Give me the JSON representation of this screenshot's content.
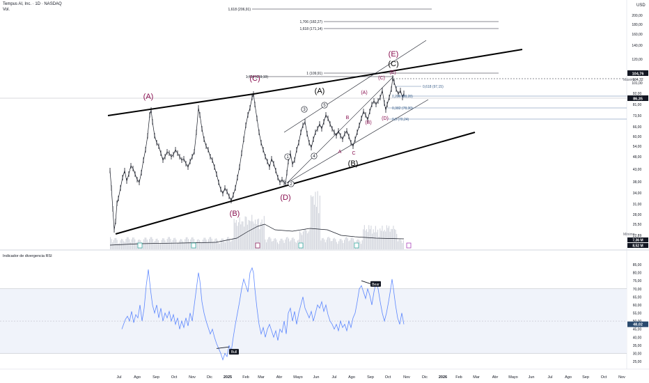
{
  "header": {
    "symbol": "Tempus AI, Inc. · 1D · NASDAQ",
    "volume_label": "Vol.",
    "currency": "USD"
  },
  "price_axis": {
    "ticks": [
      "200,00",
      "180,00",
      "160,00",
      "140,00",
      "120,00",
      "110,00",
      "101,00",
      "92,00",
      "81,00",
      "73,50",
      "66,00",
      "60,00",
      "54,00",
      "48,00",
      "43,00",
      "38,00",
      "34,00",
      "31,00",
      "28,00",
      "25,50",
      "22,89"
    ],
    "current_price": "86,35",
    "high_label": "104,76",
    "high_sub": "104,32",
    "max_label": "Máximo",
    "min_label": "Mínimo",
    "vol_values": [
      "7,36 M",
      "8,52 M"
    ]
  },
  "rsi": {
    "title": "Indicador de divergencia RSI",
    "ticks": [
      "85,00",
      "80,00",
      "75,00",
      "70,00",
      "65,00",
      "60,00",
      "55,00",
      "50,00",
      "45,00",
      "40,00",
      "35,00",
      "30,00",
      "25,00"
    ],
    "current": "48,02",
    "bull_label": "Bull",
    "bear_label": "Bear",
    "upper_band": 70,
    "lower_band": 30
  },
  "time_axis": [
    "Jul",
    "Ago",
    "Sep",
    "Oct",
    "Nov",
    "Dic",
    "2025",
    "Feb",
    "Mar",
    "Abr",
    "Mayo",
    "Jun",
    "Jul",
    "Ago",
    "Sep",
    "Oct",
    "Nov",
    "Dic",
    "2026",
    "Feb",
    "Mar",
    "Abr",
    "Mayo",
    "Jun",
    "Jul",
    "Ago",
    "Sep",
    "Oct",
    "Nov"
  ],
  "fib_levels": [
    {
      "label": "1,618 (206,91)"
    },
    {
      "label": "1,706 (182,27)"
    },
    {
      "label": "1,618 (171,14)"
    },
    {
      "label": "1,706 (119,19)"
    },
    {
      "label": "1 (109,91)"
    },
    {
      "label": "0,618 (97,15)"
    },
    {
      "label": "0,236 (88,28)"
    },
    {
      "label": "0,382 (78,30)"
    },
    {
      "label": "0,5 (70,24)"
    }
  ],
  "wave_labels": {
    "A_big": "(A)",
    "B_big": "(B)",
    "C_top": "(C)",
    "D_big": "(D)",
    "E_top": "(E)",
    "A_mid": "(A)",
    "B_mid": "(B)",
    "C_mid": "(C)",
    "c1": "1",
    "c2": "2",
    "c3": "3",
    "c4": "4",
    "c5": "5",
    "sA": "(A)",
    "sB": "B",
    "sBb": "(B)",
    "sC": "(C)",
    "sD": "(D)",
    "sE": "(E)",
    "a": "A",
    "c": "C"
  },
  "colors": {
    "price_line": "#131722",
    "fib": "#1e3a5f",
    "rsi": "#2962ff",
    "red_label": "#880e4f",
    "band": "#f0f3fa",
    "ma": "#131722"
  },
  "chart_data": [
    {
      "type": "line",
      "title": "Tempus AI, Inc. · 1D · NASDAQ",
      "xlabel": "",
      "ylabel": "USD",
      "scale": "log",
      "ylim": [
        21,
        240
      ],
      "x": [
        "2024-06",
        "2024-07",
        "2024-08",
        "2024-09",
        "2024-10",
        "2024-11",
        "2024-12",
        "2025-01",
        "2025-02",
        "2025-03",
        "2025-04",
        "2025-05",
        "2025-06",
        "2025-07",
        "2025-08",
        "2025-09",
        "2025-10"
      ],
      "series": [
        {
          "values": [
            40,
            28,
            66,
            55,
            62,
            52,
            33,
            38,
            86,
            47,
            38,
            55,
            68,
            64,
            55,
            82,
            86.35
          ]
        }
      ],
      "grid": true
    },
    {
      "type": "line",
      "title": "Indicador de divergencia RSI",
      "ylim": [
        25,
        85
      ],
      "x": [
        "2024-06",
        "2024-07",
        "2024-08",
        "2024-09",
        "2024-10",
        "2024-11",
        "2024-12",
        "2025-01",
        "2025-02",
        "2025-03",
        "2025-04",
        "2025-05",
        "2025-06",
        "2025-07",
        "2025-08",
        "2025-09",
        "2025-10"
      ],
      "series": [
        {
          "values": [
            43,
            55,
            82,
            53,
            60,
            46,
            30,
            40,
            82,
            48,
            43,
            62,
            52,
            47,
            72,
            68,
            48.02
          ]
        }
      ],
      "bands": [
        30,
        70
      ]
    }
  ]
}
